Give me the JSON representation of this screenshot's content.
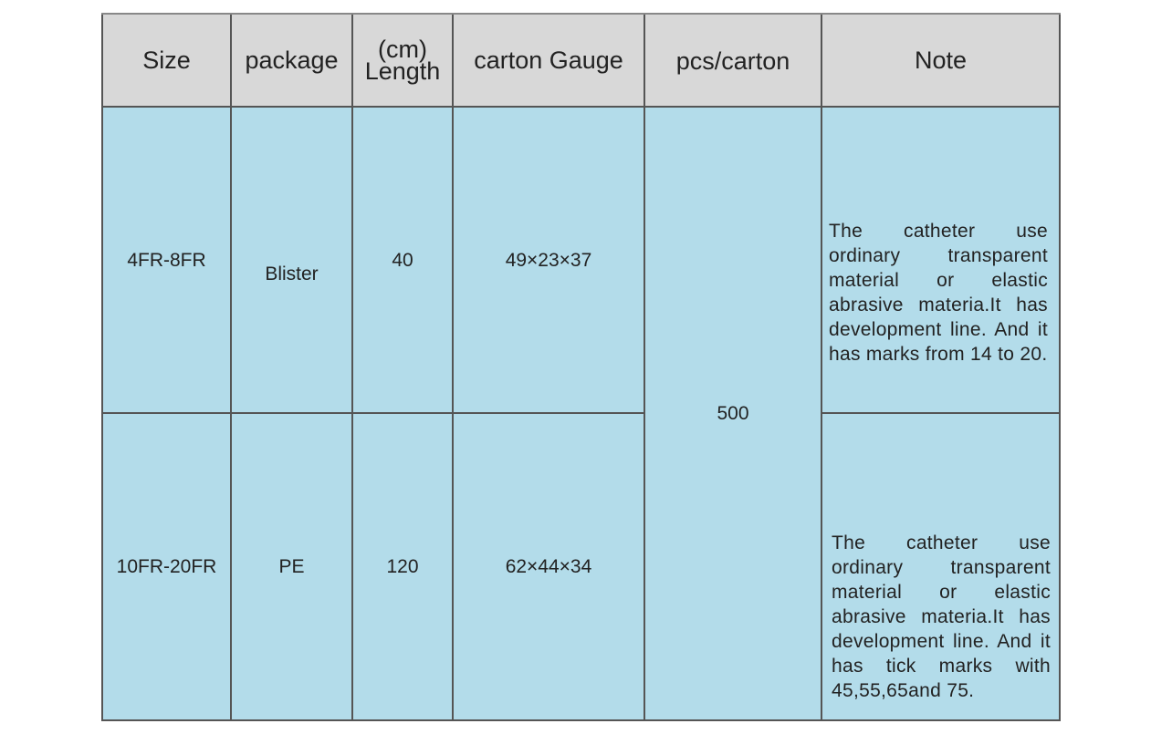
{
  "table": {
    "headers": [
      "Size",
      "package",
      "(cm)",
      "Length",
      "carton Gauge",
      "pcs/carton",
      "Note"
    ],
    "rows": [
      {
        "size": "4FR-8FR",
        "package": "Blister",
        "length": "40",
        "carton_gauge": "49×23×37",
        "note": "The catheter use ordinary transparent material or elastic abrasive materia.It has development line. And it has marks from 14 to 20."
      },
      {
        "size": "10FR-20FR",
        "package": "PE",
        "length": "120",
        "carton_gauge": "62×44×34",
        "note": "The catheter use ordinary transparent material or elastic abrasive materia.It has development line. And it has tick marks with 45,55,65and 75."
      }
    ],
    "pcs_per_carton": "500"
  },
  "colors": {
    "header_bg": "#d8d8d8",
    "body_bg": "#b3dcea",
    "grid": "#555555"
  }
}
